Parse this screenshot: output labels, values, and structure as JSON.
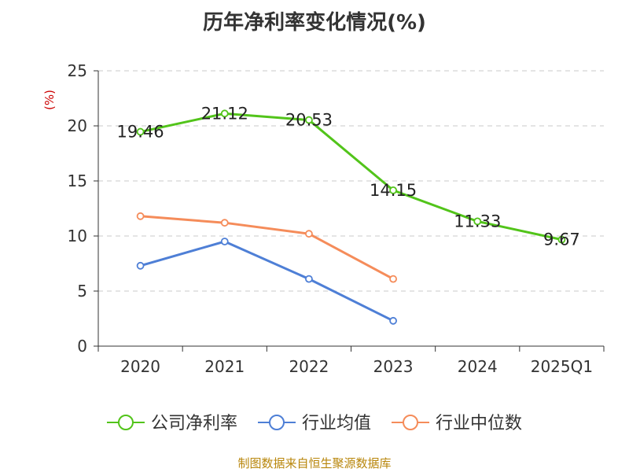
{
  "chart_data": {
    "type": "line",
    "title": "历年净利率变化情况(%)",
    "ylabel": "(%)",
    "xlabel": "",
    "ylim": [
      0,
      25
    ],
    "yticks": [
      0,
      5,
      10,
      15,
      20,
      25
    ],
    "categories": [
      "2020",
      "2021",
      "2022",
      "2023",
      "2024",
      "2025Q1"
    ],
    "grid": true,
    "legend_position": "bottom",
    "series": [
      {
        "name": "公司净利率",
        "color": "#52c41a",
        "values": [
          19.46,
          21.12,
          20.53,
          14.15,
          11.33,
          9.67
        ],
        "labels": [
          "19.46",
          "21.12",
          "20.53",
          "14.15",
          "11.33",
          "9.67"
        ]
      },
      {
        "name": "行业均值",
        "color": "#4e7fd6",
        "values": [
          7.3,
          9.5,
          6.1,
          2.3,
          null,
          null
        ],
        "labels": null
      },
      {
        "name": "行业中位数",
        "color": "#f58c5a",
        "values": [
          11.8,
          11.2,
          10.2,
          6.1,
          null,
          null
        ],
        "labels": null
      }
    ]
  },
  "source": "制图数据来自恒生聚源数据库"
}
